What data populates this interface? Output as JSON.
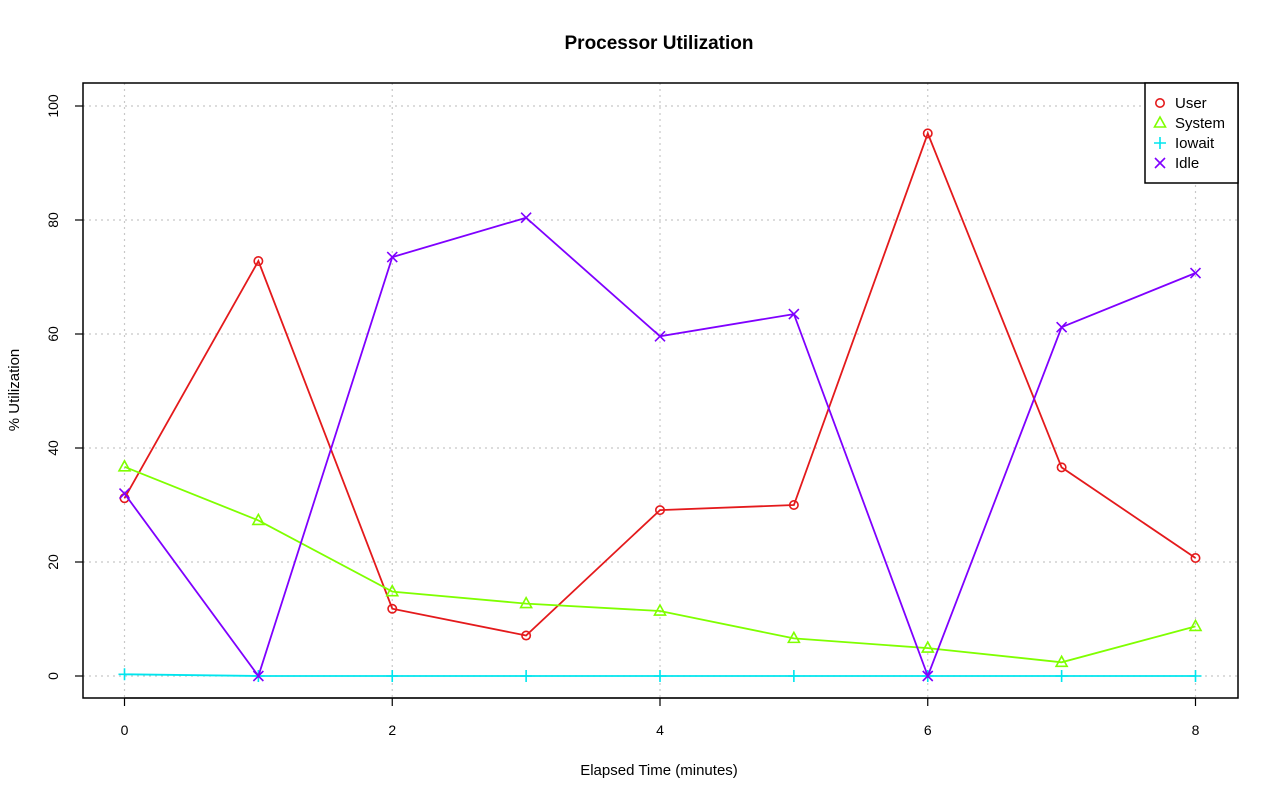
{
  "chart_data": {
    "type": "line",
    "title": "Processor Utilization",
    "xlabel": "Elapsed Time (minutes)",
    "ylabel": "% Utilization",
    "x": [
      0,
      1,
      2,
      3,
      4,
      5,
      6,
      7,
      8
    ],
    "xlim": [
      0,
      8
    ],
    "ylim": [
      0,
      100
    ],
    "xticks": [
      0,
      2,
      4,
      6,
      8
    ],
    "yticks": [
      0,
      20,
      40,
      60,
      80,
      100
    ],
    "grid": true,
    "legend_position": "top-right",
    "series": [
      {
        "name": "User",
        "color": "#e41a1c",
        "marker": "circle",
        "values": [
          31.2,
          72.8,
          11.8,
          7.1,
          29.1,
          30.0,
          95.2,
          36.6,
          20.7
        ]
      },
      {
        "name": "System",
        "color": "#7fff00",
        "marker": "triangle",
        "values": [
          36.7,
          27.3,
          14.8,
          12.7,
          11.4,
          6.6,
          4.9,
          2.4,
          8.7
        ]
      },
      {
        "name": "Iowait",
        "color": "#00e5ee",
        "marker": "plus",
        "values": [
          0.3,
          0.0,
          0.0,
          0.0,
          0.0,
          0.0,
          0.0,
          0.0,
          0.0
        ]
      },
      {
        "name": "Idle",
        "color": "#7f00ff",
        "marker": "x",
        "values": [
          32.0,
          0.0,
          73.5,
          80.4,
          59.6,
          63.5,
          0.0,
          61.2,
          70.7
        ]
      }
    ]
  }
}
